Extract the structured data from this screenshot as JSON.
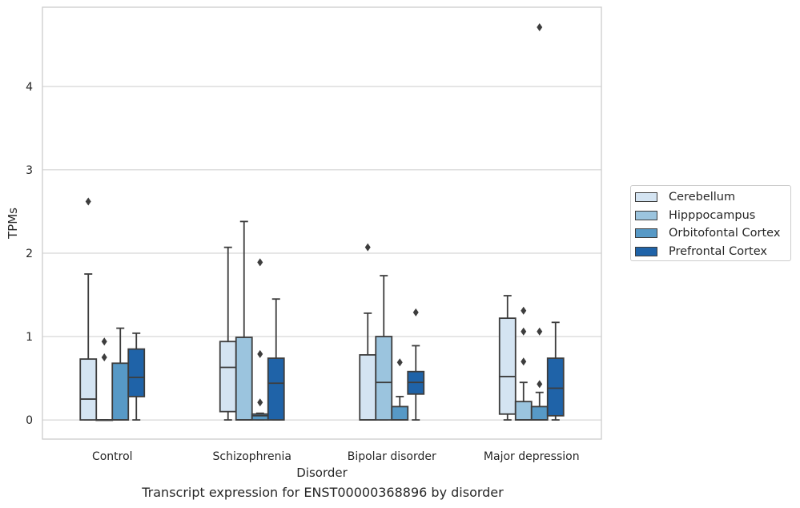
{
  "chart_data": {
    "type": "box",
    "title": "Transcript expression for ENST00000368896 by disorder",
    "xlabel": "Disorder",
    "ylabel": "TPMs",
    "categories": [
      "Control",
      "Schizophrenia",
      "Bipolar disorder",
      "Major depression"
    ],
    "ylim": [
      -0.23,
      4.95
    ],
    "yticks": [
      0,
      1,
      2,
      3,
      4
    ],
    "grid": true,
    "legend_position": "right",
    "series": [
      {
        "name": "Cerebellum",
        "color": "#d4e4f2",
        "boxes": [
          {
            "whisker_low": 0.0,
            "q1": 0.0,
            "median": 0.25,
            "q3": 0.73,
            "whisker_high": 1.75,
            "outliers": [
              2.62
            ]
          },
          {
            "whisker_low": 0.0,
            "q1": 0.1,
            "median": 0.63,
            "q3": 0.94,
            "whisker_high": 2.07,
            "outliers": []
          },
          {
            "whisker_low": 0.0,
            "q1": 0.0,
            "median": 0.0,
            "q3": 0.78,
            "whisker_high": 1.28,
            "outliers": [
              2.07
            ]
          },
          {
            "whisker_low": 0.0,
            "q1": 0.07,
            "median": 0.52,
            "q3": 1.22,
            "whisker_high": 1.49,
            "outliers": []
          }
        ]
      },
      {
        "name": "Hipppocampus",
        "color": "#9bc4de",
        "boxes": [
          {
            "whisker_low": 0.0,
            "q1": 0.0,
            "median": 0.0,
            "q3": 0.0,
            "whisker_high": 0.0,
            "outliers": [
              0.75,
              0.94
            ]
          },
          {
            "whisker_low": 0.0,
            "q1": 0.0,
            "median": 0.0,
            "q3": 0.99,
            "whisker_high": 2.38,
            "outliers": []
          },
          {
            "whisker_low": 0.0,
            "q1": 0.0,
            "median": 0.45,
            "q3": 1.0,
            "whisker_high": 1.73,
            "outliers": []
          },
          {
            "whisker_low": 0.0,
            "q1": 0.0,
            "median": 0.0,
            "q3": 0.22,
            "whisker_high": 0.45,
            "outliers": [
              0.7,
              1.06,
              1.31
            ]
          }
        ]
      },
      {
        "name": "Orbitofontal Cortex",
        "color": "#5799c6",
        "boxes": [
          {
            "whisker_low": 0.0,
            "q1": 0.0,
            "median": 0.0,
            "q3": 0.68,
            "whisker_high": 1.1,
            "outliers": []
          },
          {
            "whisker_low": 0.0,
            "q1": 0.0,
            "median": 0.05,
            "q3": 0.07,
            "whisker_high": 0.08,
            "outliers": [
              0.21,
              0.79,
              1.89
            ]
          },
          {
            "whisker_low": 0.0,
            "q1": 0.0,
            "median": 0.0,
            "q3": 0.16,
            "whisker_high": 0.28,
            "outliers": [
              0.69
            ]
          },
          {
            "whisker_low": 0.0,
            "q1": 0.0,
            "median": 0.0,
            "q3": 0.16,
            "whisker_high": 0.33,
            "outliers": [
              0.43,
              1.06,
              4.71
            ]
          }
        ]
      },
      {
        "name": "Prefrontal Cortex",
        "color": "#1f63a8",
        "boxes": [
          {
            "whisker_low": 0.0,
            "q1": 0.28,
            "median": 0.51,
            "q3": 0.85,
            "whisker_high": 1.04,
            "outliers": []
          },
          {
            "whisker_low": 0.0,
            "q1": 0.0,
            "median": 0.44,
            "q3": 0.74,
            "whisker_high": 1.45,
            "outliers": []
          },
          {
            "whisker_low": 0.0,
            "q1": 0.31,
            "median": 0.45,
            "q3": 0.58,
            "whisker_high": 0.89,
            "outliers": [
              1.29
            ]
          },
          {
            "whisker_low": 0.0,
            "q1": 0.05,
            "median": 0.38,
            "q3": 0.74,
            "whisker_high": 1.17,
            "outliers": []
          }
        ]
      }
    ]
  }
}
